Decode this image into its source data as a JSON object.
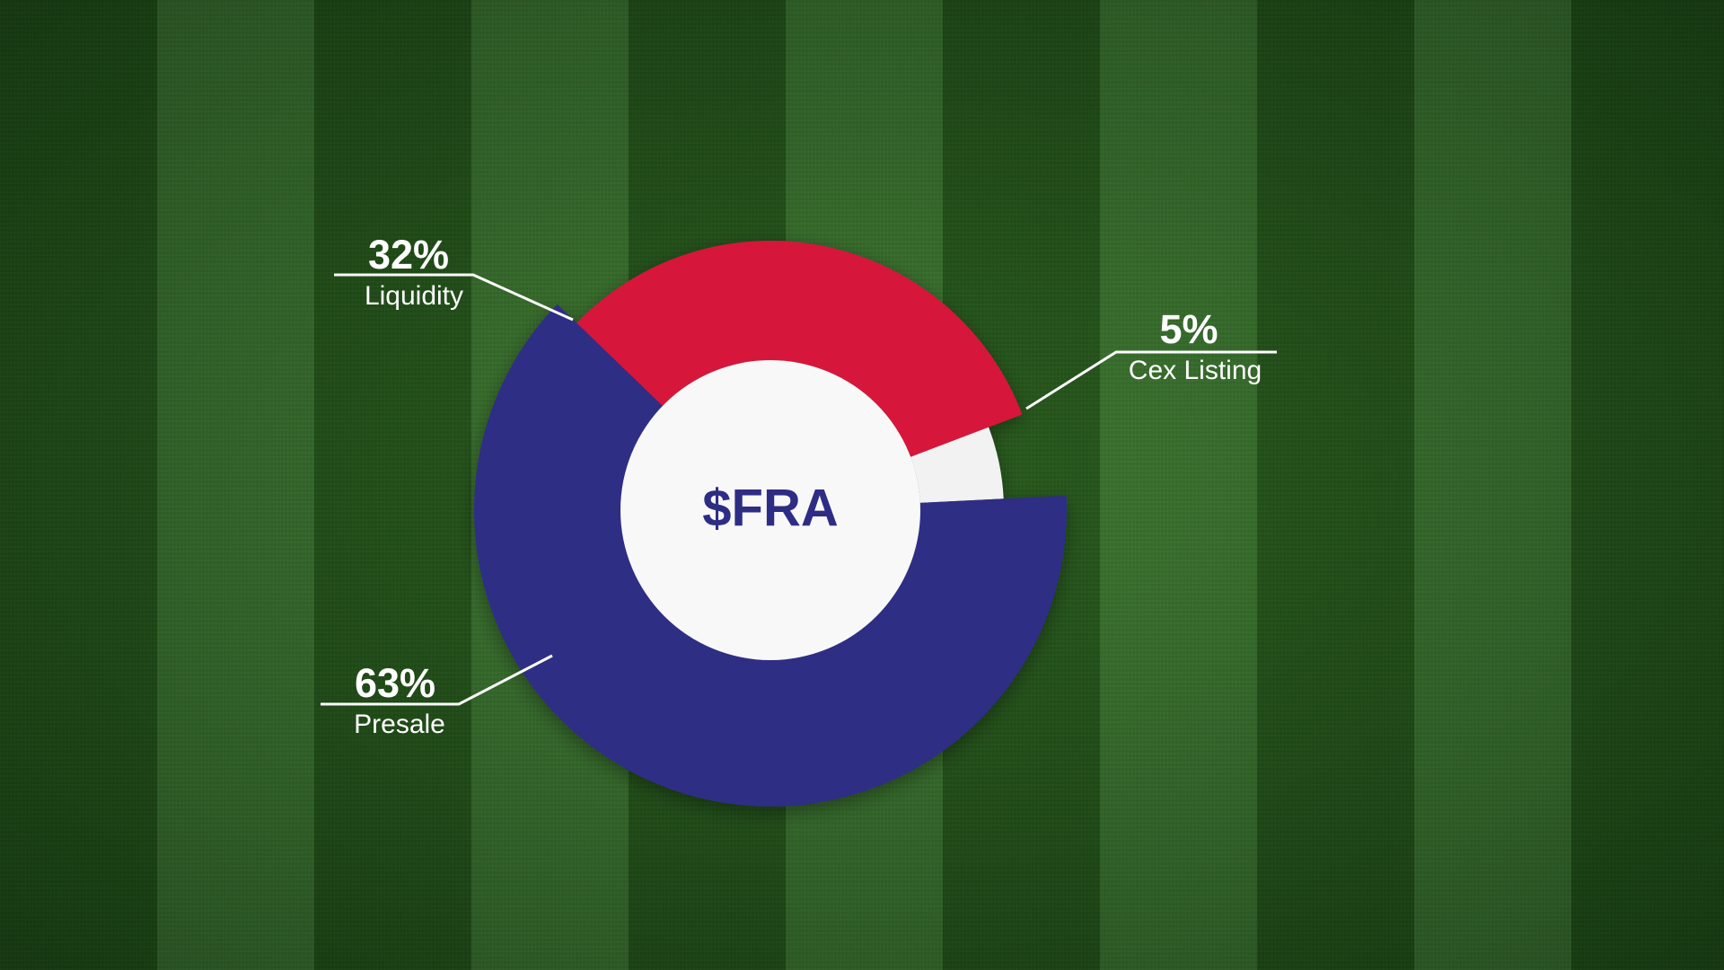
{
  "chart_data": {
    "type": "pie",
    "center_label": "$FRA",
    "categories": [
      "Liquidity",
      "Cex Listing",
      "Presale"
    ],
    "values": [
      32,
      5,
      63
    ],
    "labels": [
      "32%",
      "5%",
      "63%"
    ],
    "colors": [
      "#d7173a",
      "#f2f2f2",
      "#2e2d85"
    ],
    "center_color": "#2e2d85",
    "legend": "none"
  }
}
